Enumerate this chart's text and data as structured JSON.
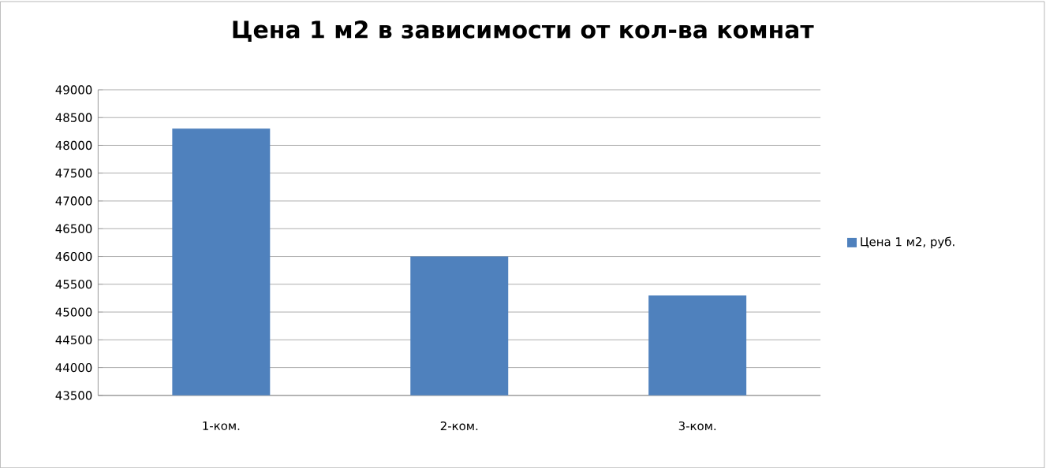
{
  "chart_data": {
    "type": "bar",
    "title": "Цена 1 м2 в зависимости от кол-ва комнат",
    "categories": [
      "1-ком.",
      "2-ком.",
      "3-ком."
    ],
    "series": [
      {
        "name": "Цена 1 м2, руб.",
        "color": "#4f81bd",
        "values": [
          48300,
          46000,
          45300
        ]
      }
    ],
    "ylim": [
      43500,
      49000
    ],
    "yticks": [
      43500,
      44000,
      44500,
      45000,
      45500,
      46000,
      46500,
      47000,
      47500,
      48000,
      48500,
      49000
    ],
    "grid": "y",
    "legend": "right"
  }
}
